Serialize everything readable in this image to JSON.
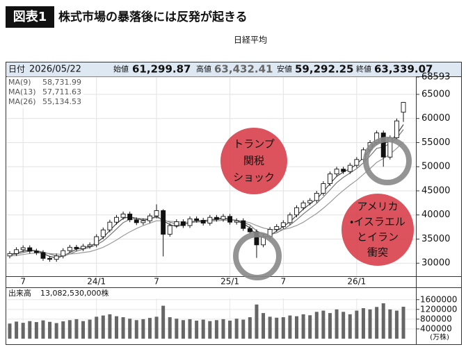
{
  "header": {
    "badge": "図表1",
    "title": "株式市場の暴落後には反発が起きる"
  },
  "chart_data": {
    "type": "candlestick",
    "title": "日経平均",
    "info": {
      "date_label": "日付",
      "date": "2026/05/22",
      "open_label": "始値",
      "open": {
        "value": 61299.87,
        "label": "61,299.87"
      },
      "high_label": "高値",
      "high": {
        "value": 63432.41,
        "label": "63,432.41"
      },
      "low_label": "安値",
      "low": {
        "value": 59292.25,
        "label": "59,292.25"
      },
      "close_label": "終値",
      "close": {
        "value": 63339.07,
        "label": "63,339.07"
      }
    },
    "categories": [
      null,
      null,
      "7",
      null,
      null,
      null,
      null,
      null,
      null,
      null,
      null,
      null,
      null,
      "24/1",
      null,
      null,
      null,
      null,
      null,
      null,
      null,
      null,
      "7",
      null,
      null,
      null,
      null,
      null,
      null,
      null,
      null,
      null,
      null,
      "25/1",
      null,
      null,
      null,
      null,
      null,
      null,
      null,
      "7",
      null,
      null,
      null,
      null,
      null,
      null,
      null,
      null,
      null,
      null,
      "26/1",
      null,
      null,
      null,
      null,
      null,
      null,
      null
    ],
    "open": [
      31500,
      32000,
      32800,
      33200,
      32500,
      32200,
      31000,
      30800,
      31500,
      32600,
      33300,
      33000,
      33500,
      33800,
      35500,
      36900,
      38500,
      39500,
      40200,
      39000,
      38400,
      38800,
      39800,
      40900,
      36000,
      37800,
      38600,
      37800,
      39200,
      38900,
      38300,
      39500,
      39100,
      39700,
      38500,
      38800,
      37200,
      36500,
      33800,
      35500,
      37000,
      37600,
      38400,
      40000,
      41500,
      42500,
      43000,
      44500,
      46500,
      48500,
      49500,
      49000,
      50300,
      51500,
      53500,
      55000,
      57000,
      52000,
      56000,
      61299.87
    ],
    "high": [
      32500,
      33300,
      33700,
      33700,
      33000,
      32700,
      31500,
      32000,
      33100,
      33800,
      33800,
      34000,
      34300,
      36000,
      37400,
      39000,
      40000,
      40700,
      40700,
      39500,
      39300,
      40300,
      42200,
      41200,
      38300,
      39100,
      39100,
      39700,
      39700,
      39400,
      40000,
      40000,
      40200,
      40200,
      39300,
      39300,
      37700,
      37000,
      36000,
      37500,
      38100,
      38900,
      40500,
      42000,
      43000,
      43500,
      45000,
      47000,
      49000,
      50000,
      50000,
      50800,
      52000,
      54000,
      55500,
      57500,
      57500,
      56500,
      60000,
      63432.41
    ],
    "low": [
      31000,
      31500,
      32300,
      32000,
      31700,
      30500,
      30300,
      30300,
      31000,
      32100,
      32500,
      32500,
      33000,
      33300,
      35000,
      36400,
      38000,
      39000,
      38500,
      37900,
      37900,
      38300,
      39300,
      31400,
      35500,
      37300,
      37300,
      37300,
      38400,
      37800,
      37800,
      38600,
      38600,
      38000,
      38000,
      36700,
      36000,
      31100,
      33300,
      35000,
      36500,
      37100,
      37900,
      39500,
      41000,
      42000,
      42500,
      44000,
      46000,
      48000,
      48500,
      48500,
      49800,
      51000,
      53000,
      54500,
      50000,
      51500,
      55500,
      59292.25
    ],
    "close": [
      32000,
      32800,
      33200,
      32500,
      32200,
      31000,
      30800,
      31500,
      32600,
      33300,
      33000,
      33500,
      33800,
      35500,
      36900,
      38500,
      39500,
      40200,
      39000,
      38400,
      38800,
      39800,
      40900,
      36000,
      37800,
      38600,
      37800,
      39200,
      38900,
      38300,
      39500,
      39100,
      39700,
      38500,
      38800,
      37200,
      36500,
      33800,
      35500,
      37000,
      37600,
      38400,
      40000,
      41500,
      42500,
      43000,
      44500,
      46500,
      48500,
      49500,
      49000,
      50300,
      51500,
      53500,
      55000,
      57000,
      52000,
      56000,
      59500,
      63339.07
    ],
    "up_color": "#ffffff",
    "down_color": "#111111",
    "edge_color": "#111111",
    "ylim": [
      27300,
      68593
    ],
    "yticks": [
      30000,
      35000,
      40000,
      45000,
      50000,
      55000,
      60000,
      65000,
      68593
    ],
    "grid": true,
    "series": [
      {
        "name": "MA(9)",
        "color": "#444444",
        "latest": {
          "value": 58731.99,
          "label": "58,731.99"
        },
        "values": [
          31800,
          32100,
          32500,
          32700,
          32600,
          32000,
          31400,
          31100,
          31500,
          32200,
          32900,
          33200,
          33500,
          34200,
          35300,
          36800,
          38200,
          39300,
          39600,
          39300,
          38900,
          39100,
          39800,
          38800,
          38000,
          37600,
          38000,
          38500,
          38800,
          38800,
          39000,
          39200,
          39400,
          39100,
          38800,
          38200,
          37300,
          35800,
          35300,
          35700,
          36700,
          37600,
          38600,
          39900,
          41200,
          42300,
          43300,
          44800,
          46500,
          48000,
          48900,
          49600,
          50500,
          51900,
          53500,
          55200,
          54800,
          55300,
          56700,
          58731.99
        ]
      },
      {
        "name": "MA(13)",
        "color": "#777777",
        "latest": {
          "value": 57711.63,
          "label": "57,711.63"
        },
        "values": [
          31700,
          31900,
          32200,
          32500,
          32600,
          32300,
          31900,
          31500,
          31500,
          31900,
          32500,
          32900,
          33300,
          33800,
          34600,
          35800,
          37100,
          38400,
          39100,
          39300,
          39200,
          39200,
          39500,
          39000,
          38500,
          38100,
          38100,
          38300,
          38600,
          38700,
          38900,
          39000,
          39200,
          39100,
          38900,
          38500,
          37900,
          36700,
          36000,
          35900,
          36300,
          37000,
          37900,
          39000,
          40200,
          41300,
          42400,
          43700,
          45200,
          46700,
          47800,
          48700,
          49600,
          50800,
          52200,
          53800,
          54100,
          54800,
          55900,
          57711.63
        ]
      },
      {
        "name": "MA(26)",
        "color": "#999999",
        "latest": {
          "value": 55134.53,
          "label": "55,134.53"
        },
        "values": [
          31500,
          31600,
          31800,
          32000,
          32100,
          32100,
          32000,
          31900,
          31800,
          31900,
          32000,
          32200,
          32400,
          32800,
          33300,
          34000,
          34800,
          35700,
          36500,
          37200,
          37800,
          38300,
          38800,
          38800,
          38700,
          38600,
          38500,
          38500,
          38500,
          38600,
          38700,
          38800,
          38900,
          38900,
          38900,
          38700,
          38400,
          37800,
          37300,
          37000,
          36900,
          37000,
          37300,
          37800,
          38500,
          39400,
          40300,
          41400,
          42600,
          43900,
          45100,
          46200,
          47200,
          48400,
          49600,
          50900,
          51700,
          52600,
          53800,
          55134.53
        ]
      }
    ],
    "volume": {
      "label": "出来高",
      "total": {
        "value": 13082530000,
        "label": "13,082,530,000株"
      },
      "unit": "(万株)",
      "color": "#666666",
      "ylim": [
        0,
        1650000
      ],
      "yticks": [
        400000,
        800000,
        1200000,
        1600000
      ],
      "values": [
        620000,
        700000,
        650000,
        720000,
        680000,
        750000,
        690000,
        640000,
        710000,
        760000,
        800000,
        720000,
        780000,
        900000,
        950000,
        1000000,
        920000,
        880000,
        820000,
        760000,
        800000,
        850000,
        900000,
        1350000,
        880000,
        820000,
        760000,
        800000,
        740000,
        780000,
        720000,
        760000,
        800000,
        740000,
        820000,
        780000,
        880000,
        1400000,
        1050000,
        900000,
        860000,
        880000,
        950000,
        920000,
        1000000,
        960000,
        1100000,
        1150000,
        1050000,
        1200000,
        1100000,
        1000000,
        1150000,
        1250000,
        1200000,
        1300000,
        1450000,
        1200000,
        1150000,
        1308253
      ]
    },
    "annotations": [
      {
        "lines": [
          "トランプ",
          "関税",
          "ショック"
        ]
      },
      {
        "lines": [
          "アメリカ",
          "・イスラエル",
          "とイラン",
          "衝突"
        ]
      }
    ]
  }
}
